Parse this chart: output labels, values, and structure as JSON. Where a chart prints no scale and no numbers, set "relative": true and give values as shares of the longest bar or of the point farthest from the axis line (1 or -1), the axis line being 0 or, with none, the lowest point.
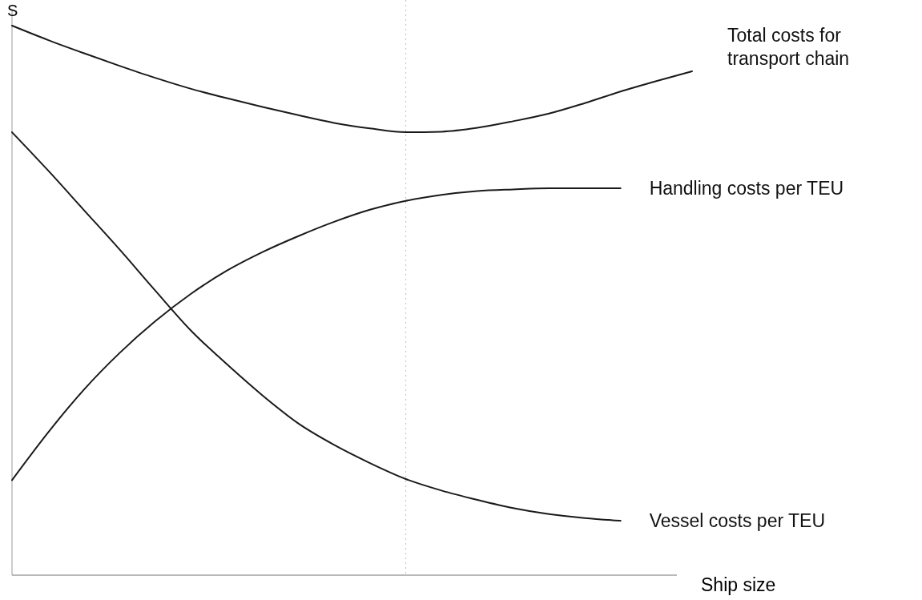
{
  "chart_data": {
    "type": "line",
    "relative": true,
    "xlabel": "Ship size",
    "ylabel": "S",
    "marker": "none",
    "line_style": "solid",
    "categories": [
      null,
      null,
      null,
      null,
      null,
      null,
      null,
      null,
      null,
      null,
      null,
      null,
      null,
      null,
      null,
      null,
      null,
      null,
      null,
      null
    ],
    "series": [
      {
        "name": "Total costs for transport chain",
        "color": "#1a1a1a",
        "values": [
          1,
          0.974,
          0.95,
          0.927,
          0.905,
          0.885,
          0.868,
          0.852,
          0.837,
          0.823,
          0.813,
          0.806,
          0.807,
          0.814,
          0.826,
          0.84,
          0.859,
          0.88,
          0.899,
          0.917
        ]
      },
      {
        "name": "Handling costs per TEU",
        "color": "#1a1a1a",
        "values": [
          0.173,
          0.259,
          0.337,
          0.404,
          0.462,
          0.512,
          0.554,
          0.588,
          0.617,
          0.643,
          0.665,
          0.681,
          0.692,
          0.699,
          0.702,
          0.704,
          0.704,
          0.704,
          null,
          null
        ]
      },
      {
        "name": "Vessel costs per TEU",
        "color": "#1a1a1a",
        "values": [
          0.806,
          0.737,
          0.665,
          0.593,
          0.518,
          0.445,
          0.384,
          0.327,
          0.276,
          0.237,
          0.204,
          0.175,
          0.154,
          0.137,
          0.122,
          0.111,
          0.104,
          0.099,
          null,
          null
        ]
      }
    ]
  }
}
